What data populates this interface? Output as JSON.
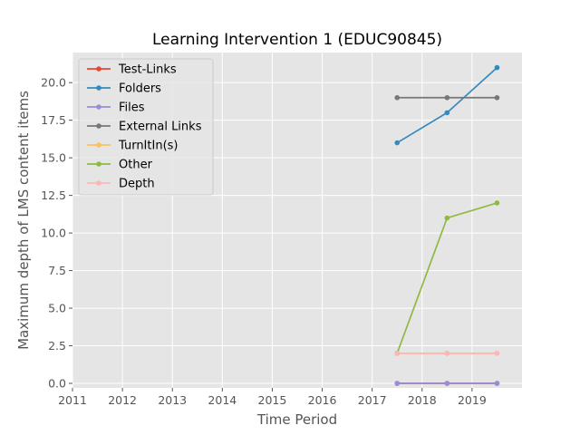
{
  "chart_data": {
    "type": "line",
    "title": "Learning Intervention 1 (EDUC90845)",
    "xlabel": "Time Period",
    "ylabel": "Maximum depth of LMS content items",
    "xlim": [
      2011,
      2020
    ],
    "ylim": [
      -0.3,
      22.0
    ],
    "xticks": [
      2011,
      2012,
      2013,
      2014,
      2015,
      2016,
      2017,
      2018,
      2019
    ],
    "xtick_labels": [
      "2011",
      "2012",
      "2013",
      "2014",
      "2015",
      "2016",
      "2017",
      "2018",
      "2019"
    ],
    "yticks": [
      0,
      2.5,
      5,
      7.5,
      10,
      12.5,
      15,
      17.5,
      20
    ],
    "ytick_labels": [
      "0.0",
      "2.5",
      "5.0",
      "7.5",
      "10.0",
      "12.5",
      "15.0",
      "17.5",
      "20.0"
    ],
    "grid": true,
    "legend_position": "top-left",
    "x": [
      2017.5,
      2018.5,
      2019.5
    ],
    "series": [
      {
        "name": "Test-Links",
        "color": "#E24A33",
        "values": [
          0,
          0,
          0
        ]
      },
      {
        "name": "Folders",
        "color": "#348ABD",
        "values": [
          16,
          18,
          21
        ]
      },
      {
        "name": "Files",
        "color": "#988ED5",
        "values": [
          0,
          0,
          0
        ]
      },
      {
        "name": "External Links",
        "color": "#777777",
        "values": [
          19,
          19,
          19
        ]
      },
      {
        "name": "TurnItIn(s)",
        "color": "#FBC15E",
        "values": [
          2,
          2,
          2
        ]
      },
      {
        "name": "Other",
        "color": "#8EBA42",
        "values": [
          2,
          11,
          12
        ]
      },
      {
        "name": "Depth",
        "color": "#FFB5B8",
        "values": [
          2,
          2,
          2
        ]
      }
    ]
  }
}
